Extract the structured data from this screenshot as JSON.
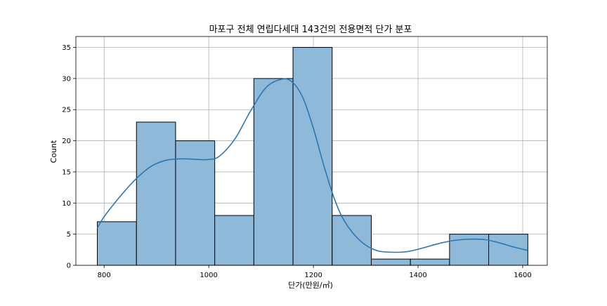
{
  "chart_data": {
    "type": "bar",
    "subtype": "histogram-with-kde",
    "title": "마포구 전체 연립다세대 143건의 전용면적 단가 분포",
    "xlabel": "단가(만원/㎡)",
    "ylabel": "Count",
    "xlim": [
      746,
      1647
    ],
    "ylim": [
      0,
      36.75
    ],
    "x_ticks": [
      800,
      1000,
      1200,
      1400,
      1600
    ],
    "y_ticks": [
      0,
      5,
      10,
      15,
      20,
      25,
      30,
      35
    ],
    "grid": true,
    "bin_edges": [
      787,
      861.8,
      936.6,
      1011.4,
      1086.2,
      1161,
      1235.8,
      1310.6,
      1385.4,
      1460.2,
      1535,
      1609.8
    ],
    "counts": [
      7,
      23,
      20,
      8,
      30,
      35,
      8,
      1,
      1,
      5,
      5
    ],
    "kde": {
      "x": [
        787,
        800,
        830,
        860,
        890,
        920,
        950,
        980,
        1000,
        1020,
        1050,
        1080,
        1110,
        1140,
        1160,
        1180,
        1200,
        1220,
        1240,
        1260,
        1290,
        1320,
        1350,
        1380,
        1410,
        1440,
        1470,
        1500,
        1530,
        1560,
        1580,
        1609
      ],
      "y": [
        6.0,
        7.8,
        11.0,
        13.8,
        15.9,
        16.9,
        17.1,
        17.0,
        17.0,
        17.5,
        20.3,
        24.8,
        28.6,
        29.9,
        29.4,
        26.9,
        22.0,
        16.0,
        10.7,
        7.0,
        3.9,
        2.4,
        2.1,
        2.2,
        2.8,
        3.5,
        4.0,
        4.2,
        4.1,
        3.5,
        3.0,
        2.4
      ]
    },
    "colors": {
      "bar_fill": "#8fb9d9",
      "bar_edge": "#000000",
      "kde_line": "#2b77b3",
      "grid": "#b0b0b0"
    }
  }
}
